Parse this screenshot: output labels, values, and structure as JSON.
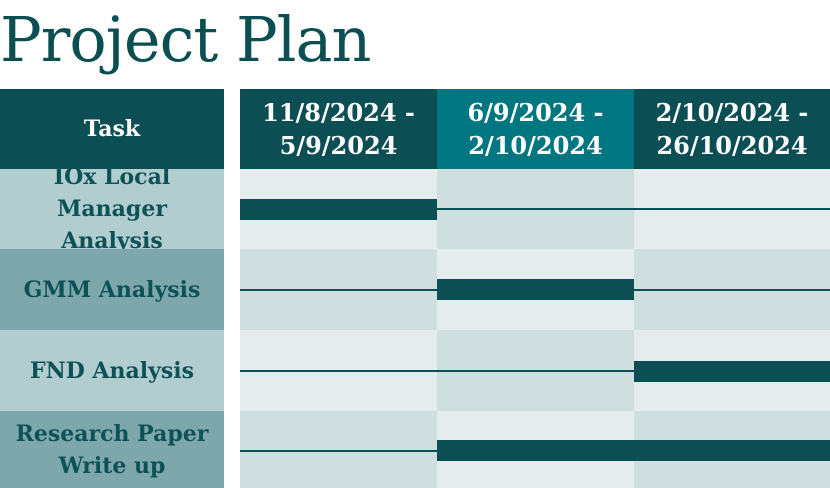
{
  "title": "Project Plan",
  "header": {
    "task_label": "Task",
    "periods": [
      "11/8/2024 -\n5/9/2024",
      "6/9/2024 -\n2/10/2024",
      "2/10/2024 -\n26/10/2024"
    ]
  },
  "tasks": [
    {
      "name": "IOx Local Manager\nAnalysis",
      "bar_period": 0
    },
    {
      "name": "GMM Analysis",
      "bar_period": 1
    },
    {
      "name": "FND Analysis",
      "bar_period": 2
    },
    {
      "name": "Research Paper\nWrite up",
      "bar_period": 1,
      "bar_until_period": 2
    }
  ],
  "colors": {
    "dark": "#0b4f55",
    "header_accent": "#007681",
    "task_light": "#b2cdcf",
    "task_dark": "#7ea7ab",
    "grid_light": "#e4ecee",
    "grid_dark": "#cfdfe0"
  }
}
